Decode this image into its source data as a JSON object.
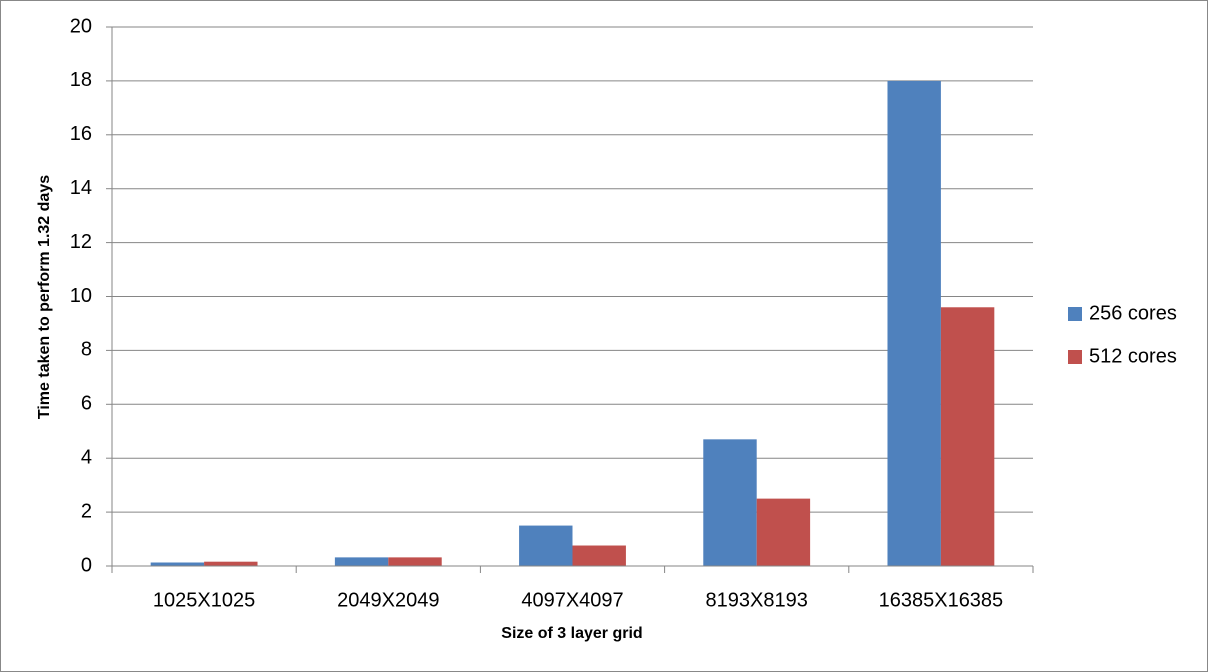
{
  "chart_data": {
    "type": "bar",
    "x_label": "Size of 3 layer grid",
    "y_label": "Time taken to perform 1.32 days",
    "categories": [
      "1025X1025",
      "2049X2049",
      "4097X4097",
      "8193X8193",
      "16385X16385"
    ],
    "series": [
      {
        "name": "256 cores",
        "color": "#4f81bd",
        "values": [
          0.13,
          0.32,
          1.5,
          4.7,
          18.0
        ]
      },
      {
        "name": "512 cores",
        "color": "#c0504d",
        "values": [
          0.16,
          0.32,
          0.76,
          2.5,
          9.6
        ]
      }
    ],
    "ylim": [
      0,
      20
    ],
    "yticks": [
      0,
      2,
      4,
      6,
      8,
      10,
      12,
      14,
      16,
      18,
      20
    ],
    "grid": true,
    "legend": "right"
  }
}
